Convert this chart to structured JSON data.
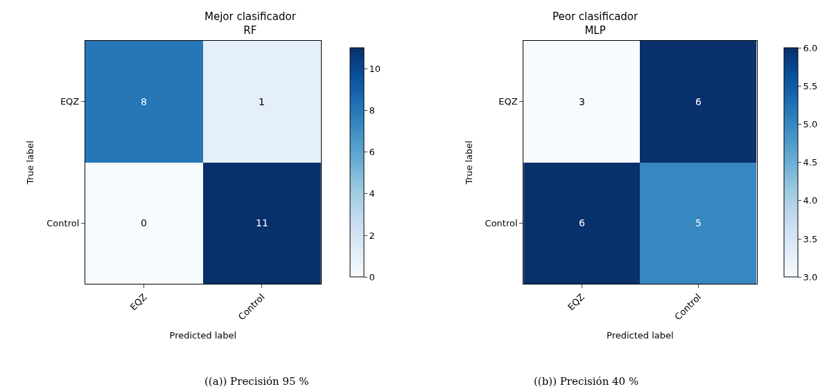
{
  "chart_data": [
    {
      "type": "heatmap",
      "title": "Mejor clasificador",
      "subtitle": "RF",
      "xlabel": "Predicted label",
      "ylabel": "True label",
      "categories": [
        "EQZ",
        "Control"
      ],
      "y_categories": [
        "EQZ",
        "Control"
      ],
      "cells": [
        [
          8,
          1
        ],
        [
          0,
          11
        ]
      ],
      "clim": [
        0,
        11
      ],
      "cticks": [
        0,
        2,
        4,
        6,
        8,
        10
      ],
      "data_labels": true,
      "annotations": [
        "((a)) Precisión 95 %"
      ]
    },
    {
      "type": "heatmap",
      "title": "Peor clasificador",
      "subtitle": "MLP",
      "xlabel": "Predicted label",
      "ylabel": "True label",
      "categories": [
        "EQZ",
        "Control"
      ],
      "y_categories": [
        "EQZ",
        "Control"
      ],
      "cells": [
        [
          3,
          6
        ],
        [
          6,
          5
        ]
      ],
      "clim": [
        3,
        6
      ],
      "cticks": [
        {
          "value": 3,
          "label": "3.0"
        },
        {
          "value": 3.5,
          "label": "3.5"
        },
        {
          "value": 4,
          "label": "4.0"
        },
        {
          "value": 4.5,
          "label": "4.5"
        },
        {
          "value": 5,
          "label": "5.0"
        },
        {
          "value": 5.5,
          "label": "5.5"
        },
        {
          "value": 6,
          "label": "6.0"
        }
      ],
      "data_labels": true,
      "annotations": [
        "((b)) Precisión 40 %"
      ]
    }
  ]
}
